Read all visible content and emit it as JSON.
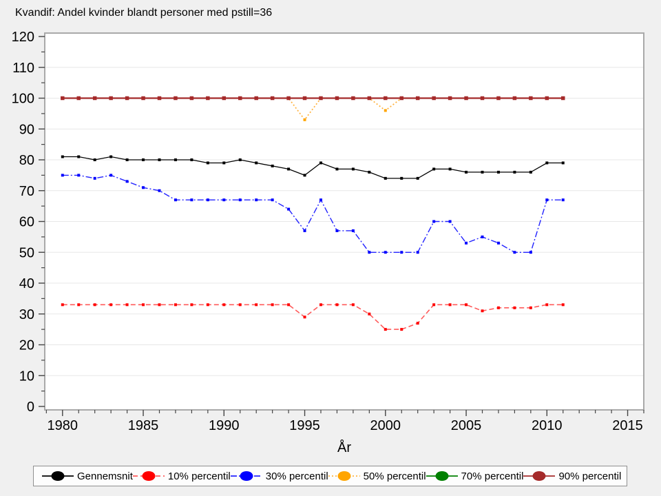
{
  "title": "Kvandif: Andel kvinder blandt personer med pstill=36",
  "chart_data": {
    "type": "line",
    "title": "Kvandif: Andel kvinder blandt personer med pstill=36",
    "xlabel": "År",
    "ylabel": "",
    "xlim": [
      1978.9,
      2016.0
    ],
    "ylim": [
      0,
      120
    ],
    "xticks": [
      1980,
      1985,
      1990,
      1995,
      2000,
      2005,
      2010,
      2015
    ],
    "yticks": [
      0,
      10,
      20,
      30,
      40,
      50,
      60,
      70,
      80,
      90,
      100,
      110,
      120
    ],
    "minor_x_step": 1,
    "minor_y_step": 5,
    "grid": "horizontal",
    "legend_position": "bottom",
    "x": [
      1980,
      1981,
      1982,
      1983,
      1984,
      1985,
      1986,
      1987,
      1988,
      1989,
      1990,
      1991,
      1992,
      1993,
      1994,
      1995,
      1996,
      1997,
      1998,
      1999,
      2000,
      2001,
      2002,
      2003,
      2004,
      2005,
      2006,
      2007,
      2008,
      2009,
      2010,
      2011
    ],
    "series": [
      {
        "name": "Gennemsnit",
        "color": "#000000",
        "line_color": "#000000",
        "dash": "solid",
        "line_width": 1.3,
        "marker_size": 4,
        "values": [
          81,
          81,
          80,
          81,
          80,
          80,
          80,
          80,
          80,
          79,
          79,
          80,
          79,
          78,
          77,
          75,
          79,
          77,
          77,
          76,
          74,
          74,
          74,
          77,
          77,
          76,
          76,
          76,
          76,
          76,
          79,
          79
        ]
      },
      {
        "name": "10% percentil",
        "color": "#ff0000",
        "line_color": "#ff5a5a",
        "dash": "dash",
        "line_width": 1.6,
        "marker_size": 4,
        "values": [
          33,
          33,
          33,
          33,
          33,
          33,
          33,
          33,
          33,
          33,
          33,
          33,
          33,
          33,
          33,
          29,
          33,
          33,
          33,
          30,
          25,
          25,
          27,
          33,
          33,
          33,
          31,
          32,
          32,
          32,
          33,
          33
        ]
      },
      {
        "name": "30% percentil",
        "color": "#0000ff",
        "line_color": "#2222ff",
        "dash": "dashdot",
        "line_width": 1.4,
        "marker_size": 4,
        "values": [
          75,
          75,
          74,
          75,
          73,
          71,
          70,
          67,
          67,
          67,
          67,
          67,
          67,
          67,
          64,
          57,
          67,
          57,
          57,
          50,
          50,
          50,
          50,
          60,
          60,
          53,
          55,
          53,
          50,
          50,
          67,
          67
        ]
      },
      {
        "name": "50% percentil",
        "color": "#ffa500",
        "line_color": "#ffb340",
        "dash": "dot",
        "line_width": 1.8,
        "marker_size": 4,
        "values": [
          100,
          100,
          100,
          100,
          100,
          100,
          100,
          100,
          100,
          100,
          100,
          100,
          100,
          100,
          100,
          93,
          100,
          100,
          100,
          100,
          96,
          100,
          100,
          100,
          100,
          100,
          100,
          100,
          100,
          100,
          100,
          100
        ]
      },
      {
        "name": "70% percentil",
        "color": "#008000",
        "line_color": "#008000",
        "dash": "solid",
        "line_width": 1.6,
        "marker_size": 4,
        "values": [
          100,
          100,
          100,
          100,
          100,
          100,
          100,
          100,
          100,
          100,
          100,
          100,
          100,
          100,
          100,
          100,
          100,
          100,
          100,
          100,
          100,
          100,
          100,
          100,
          100,
          100,
          100,
          100,
          100,
          100,
          100,
          100
        ]
      },
      {
        "name": "90% percentil",
        "color": "#a52a2a",
        "line_color": "#a52a2a",
        "dash": "solid",
        "line_width": 2.2,
        "marker_size": 5.5,
        "values": [
          100,
          100,
          100,
          100,
          100,
          100,
          100,
          100,
          100,
          100,
          100,
          100,
          100,
          100,
          100,
          100,
          100,
          100,
          100,
          100,
          100,
          100,
          100,
          100,
          100,
          100,
          100,
          100,
          100,
          100,
          100,
          100
        ]
      }
    ]
  }
}
